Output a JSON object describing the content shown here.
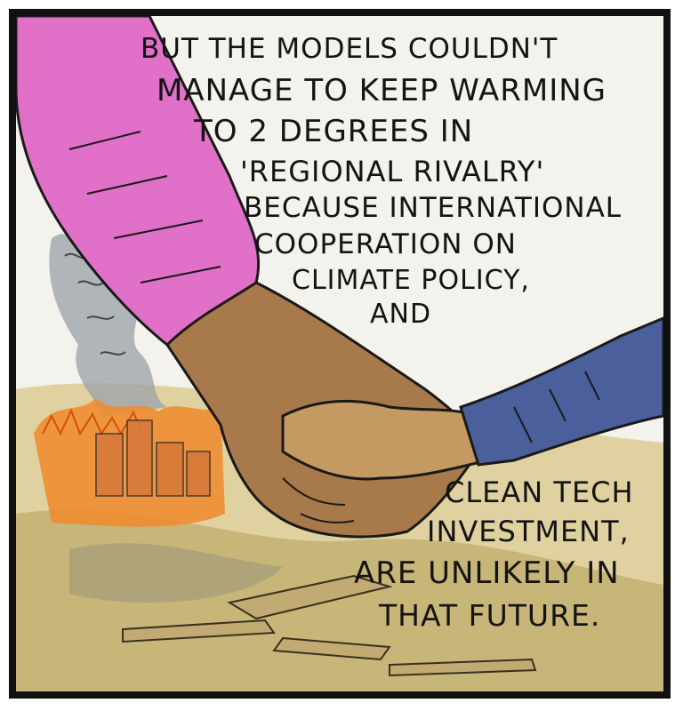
{
  "comic": {
    "top_caption": [
      "BUT THE MODELS COULDN'T",
      "MANAGE TO KEEP WARMING",
      "TO 2 DEGREES IN",
      "'REGIONAL RIVALRY'",
      "BECAUSE INTERNATIONAL",
      "COOPERATION ON",
      "CLIMATE POLICY,",
      "AND"
    ],
    "bottom_caption": [
      "CLEAN TECH",
      "INVESTMENT,",
      "ARE UNLIKELY IN",
      "THAT FUTURE."
    ]
  },
  "colors": {
    "border": "#111111",
    "paper": "#f3f2ec",
    "pink_sleeve": "#e070c8",
    "blue_sleeve": "#4a5f9c",
    "skin_adult": "#a8794a",
    "skin_child": "#c49a62",
    "fire": "#f08a2a",
    "smoke": "#9aa0a8",
    "ground": "#c9b57a",
    "rubble": "#8f7a4a"
  }
}
